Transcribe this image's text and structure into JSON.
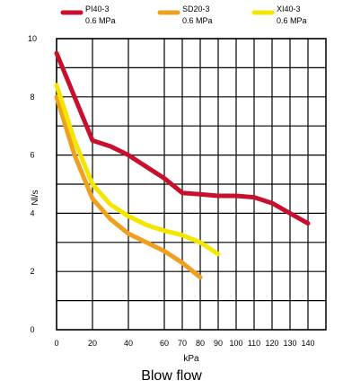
{
  "chart_data": {
    "type": "line",
    "xlabel": "kPa",
    "ylabel": "Nl/s",
    "xlim": [
      0,
      150
    ],
    "ylim": [
      0,
      10
    ],
    "x_ticks": [
      0,
      20,
      40,
      60,
      70,
      80,
      90,
      100,
      110,
      120,
      130,
      140
    ],
    "x_tick_labels": [
      "0",
      "20",
      "40",
      "60",
      "70",
      "80",
      "90",
      "100",
      "110",
      "120",
      "130",
      "140"
    ],
    "y_ticks": [
      0,
      2,
      4,
      6,
      8,
      10
    ],
    "y_tick_labels": [
      "0",
      "2",
      "4",
      "6",
      "8",
      "10"
    ],
    "grid": true,
    "legend_position": "top",
    "series": [
      {
        "name": "PI40-3 0.6 MPa",
        "name_line1": "PI40-3",
        "name_line2": "0.6 MPa",
        "color": "#c8102e",
        "x": [
          0,
          10,
          20,
          30,
          40,
          50,
          60,
          70,
          80,
          90,
          100,
          110,
          120,
          130,
          140
        ],
        "y": [
          9.5,
          8.0,
          6.5,
          6.3,
          6.0,
          5.6,
          5.2,
          4.7,
          4.65,
          4.6,
          4.6,
          4.55,
          4.35,
          4.0,
          3.65
        ]
      },
      {
        "name": "SD20-3 0.6 MPa",
        "name_line1": "SD20-3",
        "name_line2": "0.6 MPa",
        "color": "#f0a020",
        "x": [
          0,
          10,
          20,
          30,
          40,
          50,
          60,
          70,
          80
        ],
        "y": [
          8.0,
          6.0,
          4.5,
          3.8,
          3.3,
          3.0,
          2.7,
          2.3,
          1.8
        ]
      },
      {
        "name": "XI40-3 0.6 MPa",
        "name_line1": "XI40-3",
        "name_line2": "0.6 MPa",
        "color": "#f5e600",
        "x": [
          0,
          10,
          20,
          30,
          40,
          50,
          60,
          70,
          80,
          90
        ],
        "y": [
          8.4,
          6.5,
          5.0,
          4.3,
          3.9,
          3.6,
          3.4,
          3.25,
          3.0,
          2.6
        ]
      }
    ],
    "caption": "Blow flow"
  }
}
